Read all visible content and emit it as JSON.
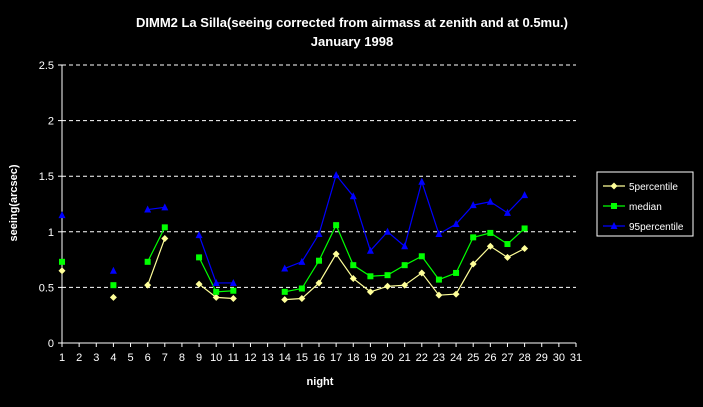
{
  "chart_data": {
    "type": "line",
    "title": "DIMM2 La Silla(seeing corrected from airmass at zenith and at 0.5mu.)",
    "subtitle": "January 1998",
    "xlabel": "night",
    "ylabel": "seeing(arcsec)",
    "xlim": [
      1,
      31
    ],
    "ylim": [
      0,
      2.5
    ],
    "x_ticks": [
      "1",
      "2",
      "3",
      "4",
      "5",
      "6",
      "7",
      "8",
      "9",
      "10",
      "11",
      "12",
      "13",
      "14",
      "15",
      "16",
      "17",
      "18",
      "19",
      "20",
      "21",
      "22",
      "23",
      "24",
      "25",
      "26",
      "27",
      "28",
      "29",
      "30",
      "31"
    ],
    "y_ticks": [
      "0",
      "0.5",
      "1",
      "1.5",
      "2",
      "2.5"
    ],
    "grid": "horizontal dashed",
    "legend_position": "right",
    "categories": [
      1,
      2,
      3,
      4,
      5,
      6,
      7,
      8,
      9,
      10,
      11,
      12,
      13,
      14,
      15,
      16,
      17,
      18,
      19,
      20,
      21,
      22,
      23,
      24,
      25,
      26,
      27,
      28,
      29,
      30,
      31
    ],
    "series": [
      {
        "name": "5percentile",
        "color": "#FFFF99",
        "marker": "diamond",
        "values": [
          0.65,
          null,
          null,
          0.41,
          null,
          0.52,
          0.94,
          null,
          0.53,
          0.41,
          0.4,
          null,
          null,
          0.39,
          0.4,
          0.54,
          0.8,
          0.58,
          0.46,
          0.51,
          0.52,
          0.63,
          0.43,
          0.44,
          0.71,
          0.87,
          0.77,
          0.85,
          null,
          null,
          null
        ]
      },
      {
        "name": "median",
        "color": "#00FF00",
        "marker": "square",
        "values": [
          0.73,
          null,
          null,
          0.52,
          null,
          0.73,
          1.04,
          null,
          0.77,
          0.46,
          0.47,
          null,
          null,
          0.46,
          0.49,
          0.74,
          1.06,
          0.7,
          0.6,
          0.61,
          0.7,
          0.78,
          0.57,
          0.63,
          0.95,
          0.99,
          0.89,
          1.03,
          null,
          null,
          null
        ]
      },
      {
        "name": "95percentile",
        "color": "#0000FF",
        "marker": "triangle",
        "values": [
          1.15,
          null,
          null,
          0.65,
          null,
          1.2,
          1.22,
          null,
          0.97,
          0.54,
          0.54,
          null,
          null,
          0.67,
          0.73,
          0.98,
          1.51,
          1.32,
          0.83,
          1.0,
          0.87,
          1.45,
          0.98,
          1.07,
          1.24,
          1.27,
          1.17,
          1.33,
          null,
          null,
          null
        ]
      }
    ]
  }
}
